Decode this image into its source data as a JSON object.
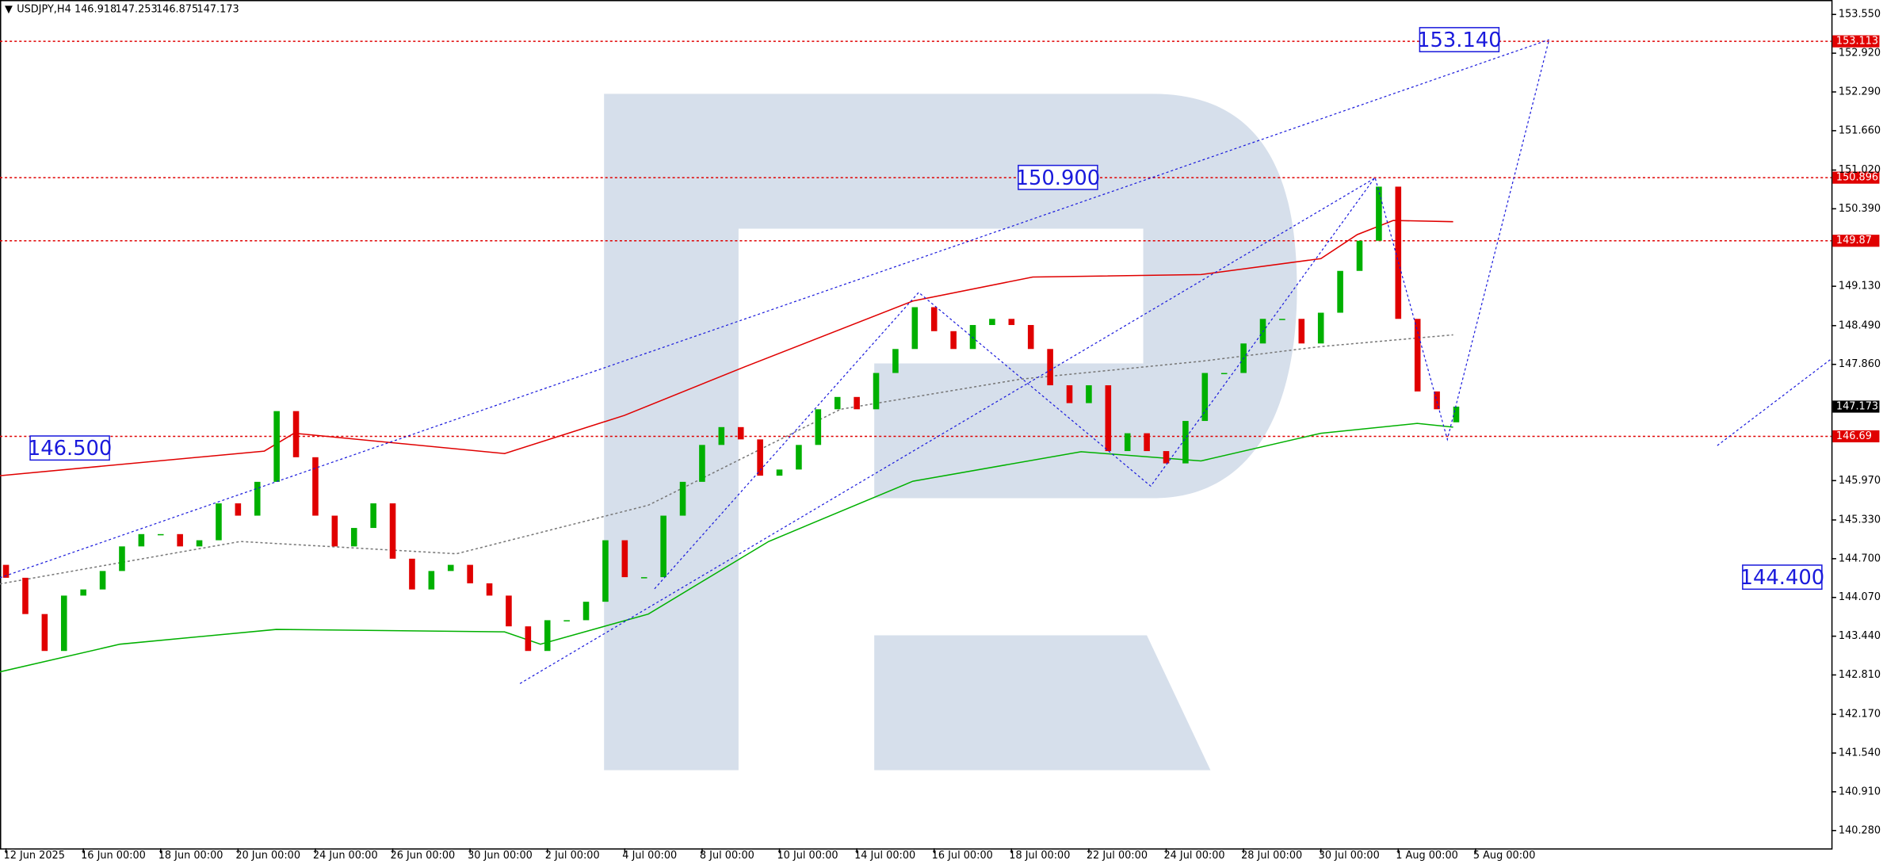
{
  "chart_data": {
    "type": "candlestick",
    "title": "USDJPY,H4",
    "quote": {
      "open": 146.918,
      "high": 147.253,
      "low": 146.875,
      "close": 147.173
    },
    "xlim": [
      -0.155,
      47.2
    ],
    "ylim": [
      139.99,
      153.785
    ],
    "grid": false,
    "up_color": "#00b000",
    "down_color": "#e00000",
    "x": [
      0,
      0.5,
      1,
      1.5,
      2,
      2.5,
      3,
      3.5,
      4,
      4.5,
      5,
      5.5,
      6,
      6.5,
      7,
      7.5,
      8,
      8.5,
      9,
      9.5,
      10,
      10.5,
      11,
      11.5,
      12,
      12.5,
      13,
      13.5,
      14,
      14.5,
      15,
      15.5,
      16,
      16.5,
      17,
      17.5,
      18,
      18.5,
      19,
      19.5,
      20,
      20.5,
      21,
      21.5,
      22,
      22.5,
      23,
      23.5,
      24,
      24.5,
      25,
      25.5,
      26,
      26.5,
      27,
      27.5,
      28,
      28.5,
      29,
      29.5,
      30,
      30.5,
      31,
      31.5,
      32,
      32.5,
      33,
      33.5,
      34,
      34.5,
      35,
      35.5,
      36,
      36.5,
      37,
      37.5
    ],
    "open": [
      144.6,
      144.39,
      143.8,
      143.2,
      144.1,
      144.2,
      144.5,
      144.9,
      145.1,
      145.1,
      144.9,
      145.0,
      145.6,
      145.4,
      145.95,
      147.1,
      146.35,
      145.4,
      144.9,
      145.2,
      145.6,
      144.7,
      144.2,
      144.5,
      144.6,
      144.3,
      144.1,
      143.6,
      143.2,
      143.7,
      143.7,
      144.0,
      145.0,
      144.4,
      144.4,
      145.4,
      145.95,
      146.55,
      146.84,
      146.64,
      146.05,
      146.15,
      146.55,
      147.13,
      147.33,
      147.13,
      147.72,
      148.11,
      148.79,
      148.4,
      148.11,
      148.5,
      148.6,
      148.5,
      148.11,
      147.52,
      147.23,
      147.52,
      146.45,
      146.74,
      146.45,
      146.25,
      146.94,
      147.72,
      147.72,
      148.2,
      148.6,
      148.6,
      148.2,
      148.7,
      149.38,
      149.87,
      150.75,
      148.6,
      147.42,
      146.918
    ],
    "close": [
      144.39,
      143.8,
      143.2,
      144.1,
      144.2,
      144.5,
      144.9,
      145.1,
      145.1,
      144.9,
      145.0,
      145.6,
      145.4,
      145.95,
      147.1,
      146.35,
      145.4,
      144.9,
      145.2,
      145.6,
      144.7,
      144.2,
      144.5,
      144.6,
      144.3,
      144.1,
      143.6,
      143.2,
      143.7,
      143.7,
      144.0,
      145.0,
      144.4,
      144.4,
      145.4,
      145.95,
      146.55,
      146.84,
      146.64,
      146.05,
      146.15,
      146.55,
      147.13,
      147.33,
      147.13,
      147.72,
      148.11,
      148.79,
      148.4,
      148.11,
      148.5,
      148.6,
      148.5,
      148.11,
      147.52,
      147.23,
      147.52,
      146.45,
      146.74,
      146.45,
      146.25,
      146.94,
      147.72,
      147.72,
      148.2,
      148.6,
      148.6,
      148.2,
      148.7,
      149.38,
      149.87,
      150.75,
      148.6,
      147.42,
      147.13,
      147.173
    ],
    "lines": [
      {
        "color": "#e00000",
        "style": "solid",
        "x": [
          -0.16,
          6.68,
          7.45,
          12.89,
          15.99,
          19.1,
          23.45,
          26.55,
          30.9,
          34.0,
          34.94,
          35.87,
          37.42
        ],
        "values": [
          146.05,
          146.45,
          146.74,
          146.41,
          147.03,
          147.82,
          148.89,
          149.28,
          149.32,
          149.58,
          149.97,
          150.2,
          150.18
        ]
      },
      {
        "color": "#00b000",
        "style": "solid",
        "x": [
          -0.16,
          2.95,
          6.99,
          12.89,
          13.82,
          16.61,
          19.72,
          23.45,
          27.8,
          30.9,
          34.0,
          36.49,
          37.42
        ],
        "values": [
          142.86,
          143.31,
          143.55,
          143.51,
          143.31,
          143.8,
          144.98,
          145.96,
          146.44,
          146.29,
          146.74,
          146.9,
          146.84
        ]
      },
      {
        "color": "#777777",
        "style": "dotted",
        "x": [
          -0.16,
          6.06,
          11.65,
          16.61,
          21.58,
          26.24,
          30.9,
          34.0,
          37.42
        ],
        "values": [
          144.29,
          144.98,
          144.78,
          145.57,
          147.13,
          147.62,
          147.91,
          148.15,
          148.34
        ]
      }
    ],
    "forecast_color": "#1a1adc",
    "forecast_lines": [
      {
        "x": [
          -0.16,
          39.9
        ],
        "values": [
          144.39,
          153.14
        ]
      },
      {
        "x": [
          13.29,
          35.4
        ],
        "values": [
          142.67,
          150.89
        ]
      },
      {
        "x": [
          16.77,
          23.6,
          29.6,
          35.4,
          37.27,
          39.9
        ],
        "values": [
          144.21,
          149.03,
          145.88,
          150.9,
          146.64,
          153.14
        ]
      },
      {
        "x": [
          44.25,
          47.2
        ],
        "values": [
          146.54,
          147.95
        ]
      }
    ],
    "annotations": [
      {
        "x": 37.58,
        "value": 153.14,
        "label": "153.140"
      },
      {
        "x": 27.2,
        "value": 150.9,
        "label": "150.900"
      },
      {
        "x": 1.65,
        "value": 146.5,
        "label": "146.500"
      },
      {
        "x": 45.93,
        "value": 144.4,
        "label": "144.400"
      }
    ],
    "level_color": "#e00000",
    "levels": [
      153.113,
      150.896,
      149.87,
      146.69
    ],
    "current_price": 147.173,
    "yticks": [
      {
        "value": 153.55,
        "label": "153.550"
      },
      {
        "value": 152.92,
        "label": "152.920"
      },
      {
        "value": 152.29,
        "label": "152.290"
      },
      {
        "value": 151.66,
        "label": "151.660"
      },
      {
        "value": 151.02,
        "label": "151.020"
      },
      {
        "value": 150.39,
        "label": "150.390"
      },
      {
        "value": 149.13,
        "label": "149.130"
      },
      {
        "value": 148.49,
        "label": "148.490"
      },
      {
        "value": 147.86,
        "label": "147.860"
      },
      {
        "value": 145.97,
        "label": "145.970"
      },
      {
        "value": 145.33,
        "label": "145.330"
      },
      {
        "value": 144.7,
        "label": "144.700"
      },
      {
        "value": 144.07,
        "label": "144.070"
      },
      {
        "value": 143.44,
        "label": "143.440"
      },
      {
        "value": 142.81,
        "label": "142.810"
      },
      {
        "value": 142.17,
        "label": "142.170"
      },
      {
        "value": 141.54,
        "label": "141.540"
      },
      {
        "value": 140.91,
        "label": "140.910"
      },
      {
        "value": 140.28,
        "label": "140.280"
      }
    ],
    "xticks": [
      {
        "value": 0,
        "label": "12 Jun 2025"
      },
      {
        "value": 2,
        "label": "16 Jun 00:00"
      },
      {
        "value": 4,
        "label": "18 Jun 00:00"
      },
      {
        "value": 6,
        "label": "20 Jun 00:00"
      },
      {
        "value": 8,
        "label": "24 Jun 00:00"
      },
      {
        "value": 10,
        "label": "26 Jun 00:00"
      },
      {
        "value": 12,
        "label": "30 Jun 00:00"
      },
      {
        "value": 14,
        "label": "2 Jul 00:00"
      },
      {
        "value": 16,
        "label": "4 Jul 00:00"
      },
      {
        "value": 18,
        "label": "8 Jul 00:00"
      },
      {
        "value": 20,
        "label": "10 Jul 00:00"
      },
      {
        "value": 22,
        "label": "14 Jul 00:00"
      },
      {
        "value": 24,
        "label": "16 Jul 00:00"
      },
      {
        "value": 26,
        "label": "18 Jul 00:00"
      },
      {
        "value": 28,
        "label": "22 Jul 00:00"
      },
      {
        "value": 30,
        "label": "24 Jul 00:00"
      },
      {
        "value": 32,
        "label": "28 Jul 00:00"
      },
      {
        "value": 34,
        "label": "30 Jul 00:00"
      },
      {
        "value": 36,
        "label": "1 Aug 00:00"
      },
      {
        "value": 38,
        "label": "5 Aug 00:00"
      }
    ]
  }
}
